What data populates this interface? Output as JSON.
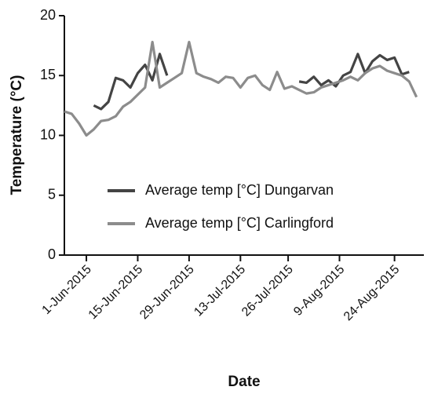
{
  "chart_data": {
    "type": "line",
    "xlabel": "Date",
    "ylabel": "Temperature (°C)",
    "x": [
      "2015-05-26",
      "2015-05-28",
      "2015-05-30",
      "2015-06-01",
      "2015-06-03",
      "2015-06-05",
      "2015-06-07",
      "2015-06-09",
      "2015-06-11",
      "2015-06-13",
      "2015-06-15",
      "2015-06-17",
      "2015-06-19",
      "2015-06-21",
      "2015-06-23",
      "2015-06-25",
      "2015-06-27",
      "2015-06-29",
      "2015-07-01",
      "2015-07-03",
      "2015-07-05",
      "2015-07-07",
      "2015-07-09",
      "2015-07-11",
      "2015-07-13",
      "2015-07-15",
      "2015-07-17",
      "2015-07-19",
      "2015-07-21",
      "2015-07-23",
      "2015-07-25",
      "2015-07-27",
      "2015-07-29",
      "2015-07-31",
      "2015-08-02",
      "2015-08-04",
      "2015-08-06",
      "2015-08-08",
      "2015-08-10",
      "2015-08-12",
      "2015-08-14",
      "2015-08-16",
      "2015-08-18",
      "2015-08-20",
      "2015-08-22",
      "2015-08-24",
      "2015-08-26",
      "2015-08-28",
      "2015-08-30"
    ],
    "series": [
      {
        "name": "Average temp [°C] Dungarvan",
        "color": "#444444",
        "values": [
          null,
          null,
          null,
          null,
          12.5,
          12.2,
          12.8,
          14.8,
          14.6,
          14.0,
          15.2,
          15.9,
          14.6,
          16.8,
          15.0,
          null,
          null,
          null,
          null,
          null,
          null,
          null,
          null,
          null,
          null,
          null,
          null,
          null,
          null,
          null,
          null,
          null,
          14.5,
          14.4,
          14.9,
          14.2,
          14.6,
          14.1,
          15.0,
          15.3,
          16.8,
          15.2,
          16.2,
          16.7,
          16.3,
          16.5,
          15.1,
          15.3,
          null
        ]
      },
      {
        "name": "Average temp [°C] Carlingford",
        "color": "#8c8c8c",
        "values": [
          12.0,
          11.8,
          11.0,
          10.0,
          10.5,
          11.2,
          11.3,
          11.6,
          12.4,
          12.8,
          13.4,
          14.0,
          17.8,
          14.0,
          14.4,
          14.8,
          15.2,
          17.8,
          15.2,
          14.9,
          14.7,
          14.4,
          14.9,
          14.8,
          14.0,
          14.8,
          15.0,
          14.2,
          13.8,
          15.3,
          13.9,
          14.1,
          13.8,
          13.5,
          13.6,
          14.0,
          14.2,
          14.4,
          14.6,
          14.9,
          14.6,
          15.2,
          15.6,
          15.8,
          15.4,
          15.2,
          15.0,
          14.5,
          13.2
        ]
      }
    ],
    "xlim": [
      "2015-05-26",
      "2015-09-01"
    ],
    "xticks": [
      {
        "value": "2015-06-01",
        "label": "1-Jun-2015"
      },
      {
        "value": "2015-06-15",
        "label": "15-Jun-2015"
      },
      {
        "value": "2015-06-29",
        "label": "29-Jun-2015"
      },
      {
        "value": "2015-07-13",
        "label": "13-Jul-2015"
      },
      {
        "value": "2015-07-26",
        "label": "26-Jul-2015"
      },
      {
        "value": "2015-08-09",
        "label": "9-Aug-2015"
      },
      {
        "value": "2015-08-24",
        "label": "24-Aug-2015"
      }
    ],
    "ylim": [
      0,
      20
    ],
    "yticks": [
      0,
      5,
      10,
      15,
      20
    ],
    "grid": false,
    "legend": "center"
  }
}
